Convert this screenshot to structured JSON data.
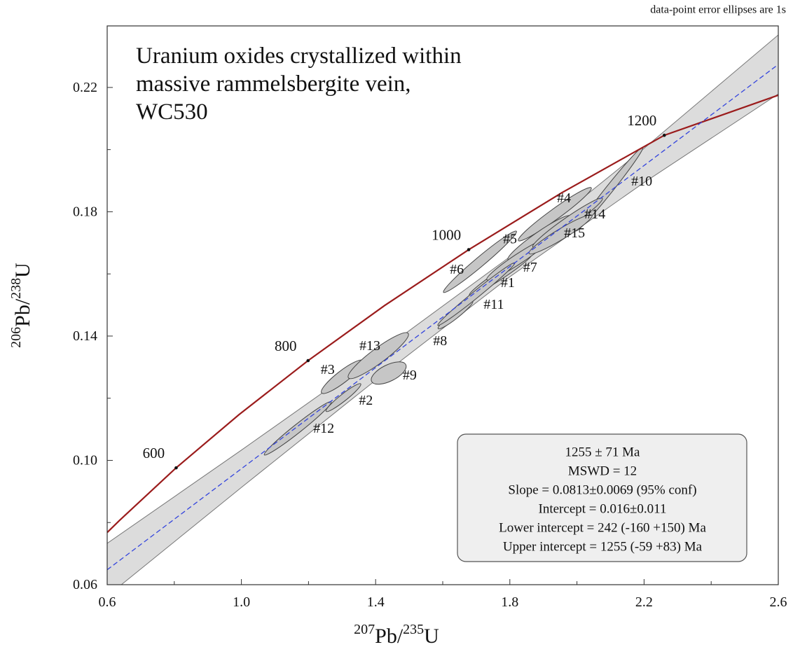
{
  "chart_data": {
    "type": "concordia",
    "title": [
      "Uranium oxides crystallized within",
      "massive rammelsbergite vein,",
      "WC530"
    ],
    "subtitle": "data-point error ellipses are 1s",
    "x_label": [
      "207",
      "Pb/",
      "235",
      "U"
    ],
    "y_label": [
      "206",
      "Pb/",
      "238",
      "U"
    ],
    "xlim": [
      0.6,
      2.6
    ],
    "ylim": [
      0.06,
      0.2398
    ],
    "xticks": [
      0.6,
      {
        "value": 1,
        "label": "1.0"
      },
      1.4,
      1.8,
      2.2,
      2.6
    ],
    "yticks": [
      0.06,
      {
        "value": 0.1,
        "label": "0.10"
      },
      0.14,
      0.18,
      0.22
    ],
    "x_minor_ticks": [
      0.8,
      1.2,
      1.6,
      2.0,
      2.4
    ],
    "y_minor_ticks": [
      0.08,
      0.12,
      0.16,
      0.2
    ],
    "concordia": {
      "color": "#9b1c1c",
      "x": [
        0.6,
        0.636,
        0.8055,
        0.9926,
        1.1987,
        1.4264,
        1.6774,
        1.9546,
        2.2603,
        2.6
      ],
      "y": [
        0.0768,
        0.0806,
        0.0976,
        0.1147,
        0.1321,
        0.1498,
        0.1678,
        0.1861,
        0.2046,
        0.2175
      ]
    },
    "age_marks": {
      "ages": [
        600,
        800,
        1000,
        1200
      ],
      "x": [
        0.8055,
        1.1987,
        1.6774,
        2.2603
      ],
      "y": [
        0.0976,
        0.1321,
        0.1678,
        0.2046
      ]
    },
    "regression": {
      "color": "#3344dd",
      "x": [
        0.6,
        2.6
      ],
      "y": [
        0.0648,
        0.2274
      ]
    },
    "envelope": {
      "color": "#dcdcdc",
      "x": [
        0.6,
        1.0,
        1.4,
        1.8,
        2.2,
        2.6
      ],
      "upper": [
        0.0733,
        0.1033,
        0.1338,
        0.1655,
        0.2004,
        0.2369
      ],
      "lower": [
        0.0563,
        0.0913,
        0.1258,
        0.1591,
        0.1894,
        0.2179
      ]
    },
    "ellipses": {
      "color": "#c6c6c6",
      "labels": [
        "#1",
        "#2",
        "#3",
        "#4",
        "#5",
        "#6",
        "#7",
        "#8",
        "#9",
        "#10",
        "#11",
        "#12",
        "#13",
        "#14",
        "#15"
      ],
      "x": [
        1.773,
        1.304,
        1.301,
        1.934,
        1.888,
        1.711,
        1.825,
        1.638,
        1.439,
        2.097,
        1.7,
        1.168,
        1.408,
        1.972,
        1.951
      ],
      "y": [
        0.1598,
        0.1202,
        0.1269,
        0.1792,
        0.1716,
        0.1639,
        0.1648,
        0.1468,
        0.1281,
        0.1873,
        0.1535,
        0.1103,
        0.1337,
        0.1765,
        0.1727
      ],
      "x_err": [
        0.094,
        0.052,
        0.063,
        0.109,
        0.094,
        0.109,
        0.094,
        0.052,
        0.052,
        0.1,
        0.115,
        0.1,
        0.09,
        0.104,
        0.094
      ],
      "y_err": [
        0.0068,
        0.0045,
        0.0054,
        0.0086,
        0.0072,
        0.0099,
        0.0068,
        0.0045,
        0.0036,
        0.0135,
        0.0101,
        0.0086,
        0.0074,
        0.0079,
        0.0063
      ],
      "rho": [
        0.97,
        0.95,
        0.9,
        0.97,
        0.95,
        0.98,
        0.96,
        0.95,
        0.6,
        0.99,
        0.99,
        0.98,
        0.92,
        0.97,
        0.95
      ]
    },
    "stats_box": [
      "1255 ± 71 Ma",
      "MSWD = 12",
      "Slope = 0.0813±0.0069 (95% conf)",
      "Intercept = 0.016±0.011",
      "Lower intercept = 242  (-160 +150) Ma",
      "Upper intercept = 1255  (-59 +83) Ma"
    ]
  }
}
